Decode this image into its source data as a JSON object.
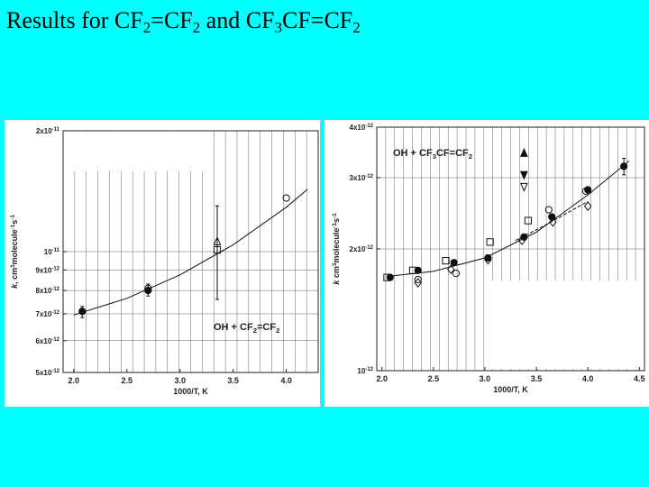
{
  "slide": {
    "title_parts": [
      {
        "t": "Results for CF",
        "sub": false
      },
      {
        "t": "2",
        "sub": true
      },
      {
        "t": "=CF",
        "sub": false
      },
      {
        "t": "2",
        "sub": true
      },
      {
        "t": " and CF",
        "sub": false
      },
      {
        "t": "3",
        "sub": true
      },
      {
        "t": "CF=CF",
        "sub": false
      },
      {
        "t": "2",
        "sub": true
      }
    ],
    "background": "#00ffff"
  },
  "chart_data": [
    {
      "type": "scatter",
      "title": "",
      "annotation_parts": [
        {
          "t": "OH + CF",
          "sub": false
        },
        {
          "t": "2",
          "sub": true
        },
        {
          "t": "=CF",
          "sub": false
        },
        {
          "t": "2",
          "sub": true
        }
      ],
      "xlabel": "1000/T,  K",
      "ylabel_parts": [
        {
          "t": "k",
          "style": "italic"
        },
        {
          "t": ", cm",
          "style": "normal"
        },
        {
          "t": "3",
          "style": "sup"
        },
        {
          "t": "molecule",
          "style": "normal"
        },
        {
          "t": "-1",
          "style": "sup"
        },
        {
          "t": "s",
          "style": "normal"
        },
        {
          "t": "-1",
          "style": "sup"
        }
      ],
      "x_scale": "linear",
      "y_scale": "log",
      "xlim": [
        1.9,
        4.3
      ],
      "ylim": [
        5e-12,
        2e-11
      ],
      "grid": true,
      "x_ticks": [
        2.0,
        2.5,
        3.0,
        3.5,
        4.0
      ],
      "x_tick_labels": [
        "2.0",
        "2.5",
        "3.0",
        "3.5",
        "4.0"
      ],
      "y_ticks": [
        {
          "value": 2e-11,
          "mant": "2x10",
          "exp": "-11"
        },
        {
          "value": 1e-11,
          "mant": "10",
          "exp": "-11"
        },
        {
          "value": 9e-12,
          "mant": "9x10",
          "exp": "-12"
        },
        {
          "value": 8e-12,
          "mant": "8x10",
          "exp": "-12"
        },
        {
          "value": 7e-12,
          "mant": "7x10",
          "exp": "-12"
        },
        {
          "value": 6e-12,
          "mant": "6x10",
          "exp": "-12"
        },
        {
          "value": 5e-12,
          "mant": "5x10",
          "exp": "-12"
        }
      ],
      "series": [
        {
          "marker": "filled-circle",
          "points": [
            {
              "x": 2.08,
              "y": 7.1e-12,
              "err_lo": 6.85e-12,
              "err_hi": 7.3e-12
            },
            {
              "x": 2.7,
              "y": 8e-12,
              "err_lo": 7.75e-12,
              "err_hi": 8.3e-12
            }
          ]
        },
        {
          "marker": "open-circle",
          "points": [
            {
              "x": 2.7,
              "y": 8.1e-12
            },
            {
              "x": 4.0,
              "y": 1.36e-11
            }
          ]
        },
        {
          "marker": "open-square",
          "points": [
            {
              "x": 3.35,
              "y": 1.01e-11,
              "err_lo": 7.6e-12,
              "err_hi": 1.3e-11
            }
          ]
        },
        {
          "marker": "open-triangle",
          "points": [
            {
              "x": 3.35,
              "y": 1.06e-11
            }
          ]
        }
      ],
      "fit_curve": [
        {
          "x": 2.0,
          "y": 6.95e-12
        },
        {
          "x": 2.5,
          "y": 7.65e-12
        },
        {
          "x": 3.0,
          "y": 8.75e-12
        },
        {
          "x": 3.5,
          "y": 1.04e-11
        },
        {
          "x": 4.0,
          "y": 1.29e-11
        },
        {
          "x": 4.2,
          "y": 1.43e-11
        }
      ]
    },
    {
      "type": "scatter",
      "title": "",
      "annotation_parts": [
        {
          "t": "OH + CF",
          "sub": false
        },
        {
          "t": "3",
          "sub": true
        },
        {
          "t": "CF=CF",
          "sub": false
        },
        {
          "t": "2",
          "sub": true
        }
      ],
      "xlabel": "1000/T,  K",
      "ylabel_parts": [
        {
          "t": "k",
          "style": "italic"
        },
        {
          "t": " cm",
          "style": "normal"
        },
        {
          "t": "3",
          "style": "sup"
        },
        {
          "t": "molecule",
          "style": "normal"
        },
        {
          "t": "-1",
          "style": "sup"
        },
        {
          "t": "s",
          "style": "normal"
        },
        {
          "t": "-1",
          "style": "sup"
        }
      ],
      "x_scale": "linear",
      "y_scale": "log",
      "xlim": [
        1.95,
        4.55
      ],
      "ylim": [
        1e-12,
        4e-12
      ],
      "grid": true,
      "x_ticks": [
        2.0,
        2.5,
        3.0,
        3.5,
        4.0,
        4.5
      ],
      "x_tick_labels": [
        "2.0",
        "2.5",
        "3.0",
        "3.5",
        "4.0",
        "4.5"
      ],
      "y_ticks": [
        {
          "value": 4e-12,
          "mant": "4x10",
          "exp": "-12"
        },
        {
          "value": 3e-12,
          "mant": "3x10",
          "exp": "-12"
        },
        {
          "value": 2e-12,
          "mant": "2x10",
          "exp": "-12"
        },
        {
          "value": 1e-12,
          "mant": "10",
          "exp": "-12"
        }
      ],
      "series": [
        {
          "marker": "filled-circle",
          "points": [
            {
              "x": 2.08,
              "y": 1.7e-12
            },
            {
              "x": 2.35,
              "y": 1.77e-12
            },
            {
              "x": 2.7,
              "y": 1.85e-12
            },
            {
              "x": 3.03,
              "y": 1.9e-12
            },
            {
              "x": 3.38,
              "y": 2.14e-12
            },
            {
              "x": 3.65,
              "y": 2.4e-12
            },
            {
              "x": 4.0,
              "y": 2.8e-12
            },
            {
              "x": 4.35,
              "y": 3.2e-12,
              "err_lo": 3.05e-12,
              "err_hi": 3.35e-12
            }
          ]
        },
        {
          "marker": "open-square",
          "points": [
            {
              "x": 2.05,
              "y": 1.7e-12
            },
            {
              "x": 2.3,
              "y": 1.77e-12
            },
            {
              "x": 2.62,
              "y": 1.87e-12
            },
            {
              "x": 3.05,
              "y": 2.08e-12
            },
            {
              "x": 3.42,
              "y": 2.35e-12
            }
          ]
        },
        {
          "marker": "open-circle",
          "points": [
            {
              "x": 2.35,
              "y": 1.68e-12
            },
            {
              "x": 2.72,
              "y": 1.74e-12
            },
            {
              "x": 3.62,
              "y": 2.5e-12
            },
            {
              "x": 3.98,
              "y": 2.78e-12
            }
          ]
        },
        {
          "marker": "open-diamond",
          "points": [
            {
              "x": 2.35,
              "y": 1.65e-12
            },
            {
              "x": 2.67,
              "y": 1.78e-12
            },
            {
              "x": 3.03,
              "y": 1.88e-12
            },
            {
              "x": 3.36,
              "y": 2.1e-12
            },
            {
              "x": 3.66,
              "y": 2.33e-12
            },
            {
              "x": 4.0,
              "y": 2.55e-12
            }
          ]
        },
        {
          "marker": "filled-triangle-up",
          "points": [
            {
              "x": 3.38,
              "y": 3.45e-12
            }
          ]
        },
        {
          "marker": "filled-triangle-down",
          "points": [
            {
              "x": 3.38,
              "y": 3.05e-12
            }
          ]
        },
        {
          "marker": "open-triangle-down",
          "points": [
            {
              "x": 3.38,
              "y": 2.85e-12
            }
          ]
        }
      ],
      "fit_curve": [
        {
          "x": 2.05,
          "y": 1.71e-12
        },
        {
          "x": 2.5,
          "y": 1.76e-12
        },
        {
          "x": 3.0,
          "y": 1.9e-12
        },
        {
          "x": 3.5,
          "y": 2.2e-12
        },
        {
          "x": 4.0,
          "y": 2.72e-12
        },
        {
          "x": 4.4,
          "y": 3.3e-12
        }
      ],
      "dashed_curve": [
        {
          "x": 3.3,
          "y": 2.1e-12
        },
        {
          "x": 3.6,
          "y": 2.3e-12
        },
        {
          "x": 4.0,
          "y": 2.62e-12
        }
      ]
    }
  ]
}
